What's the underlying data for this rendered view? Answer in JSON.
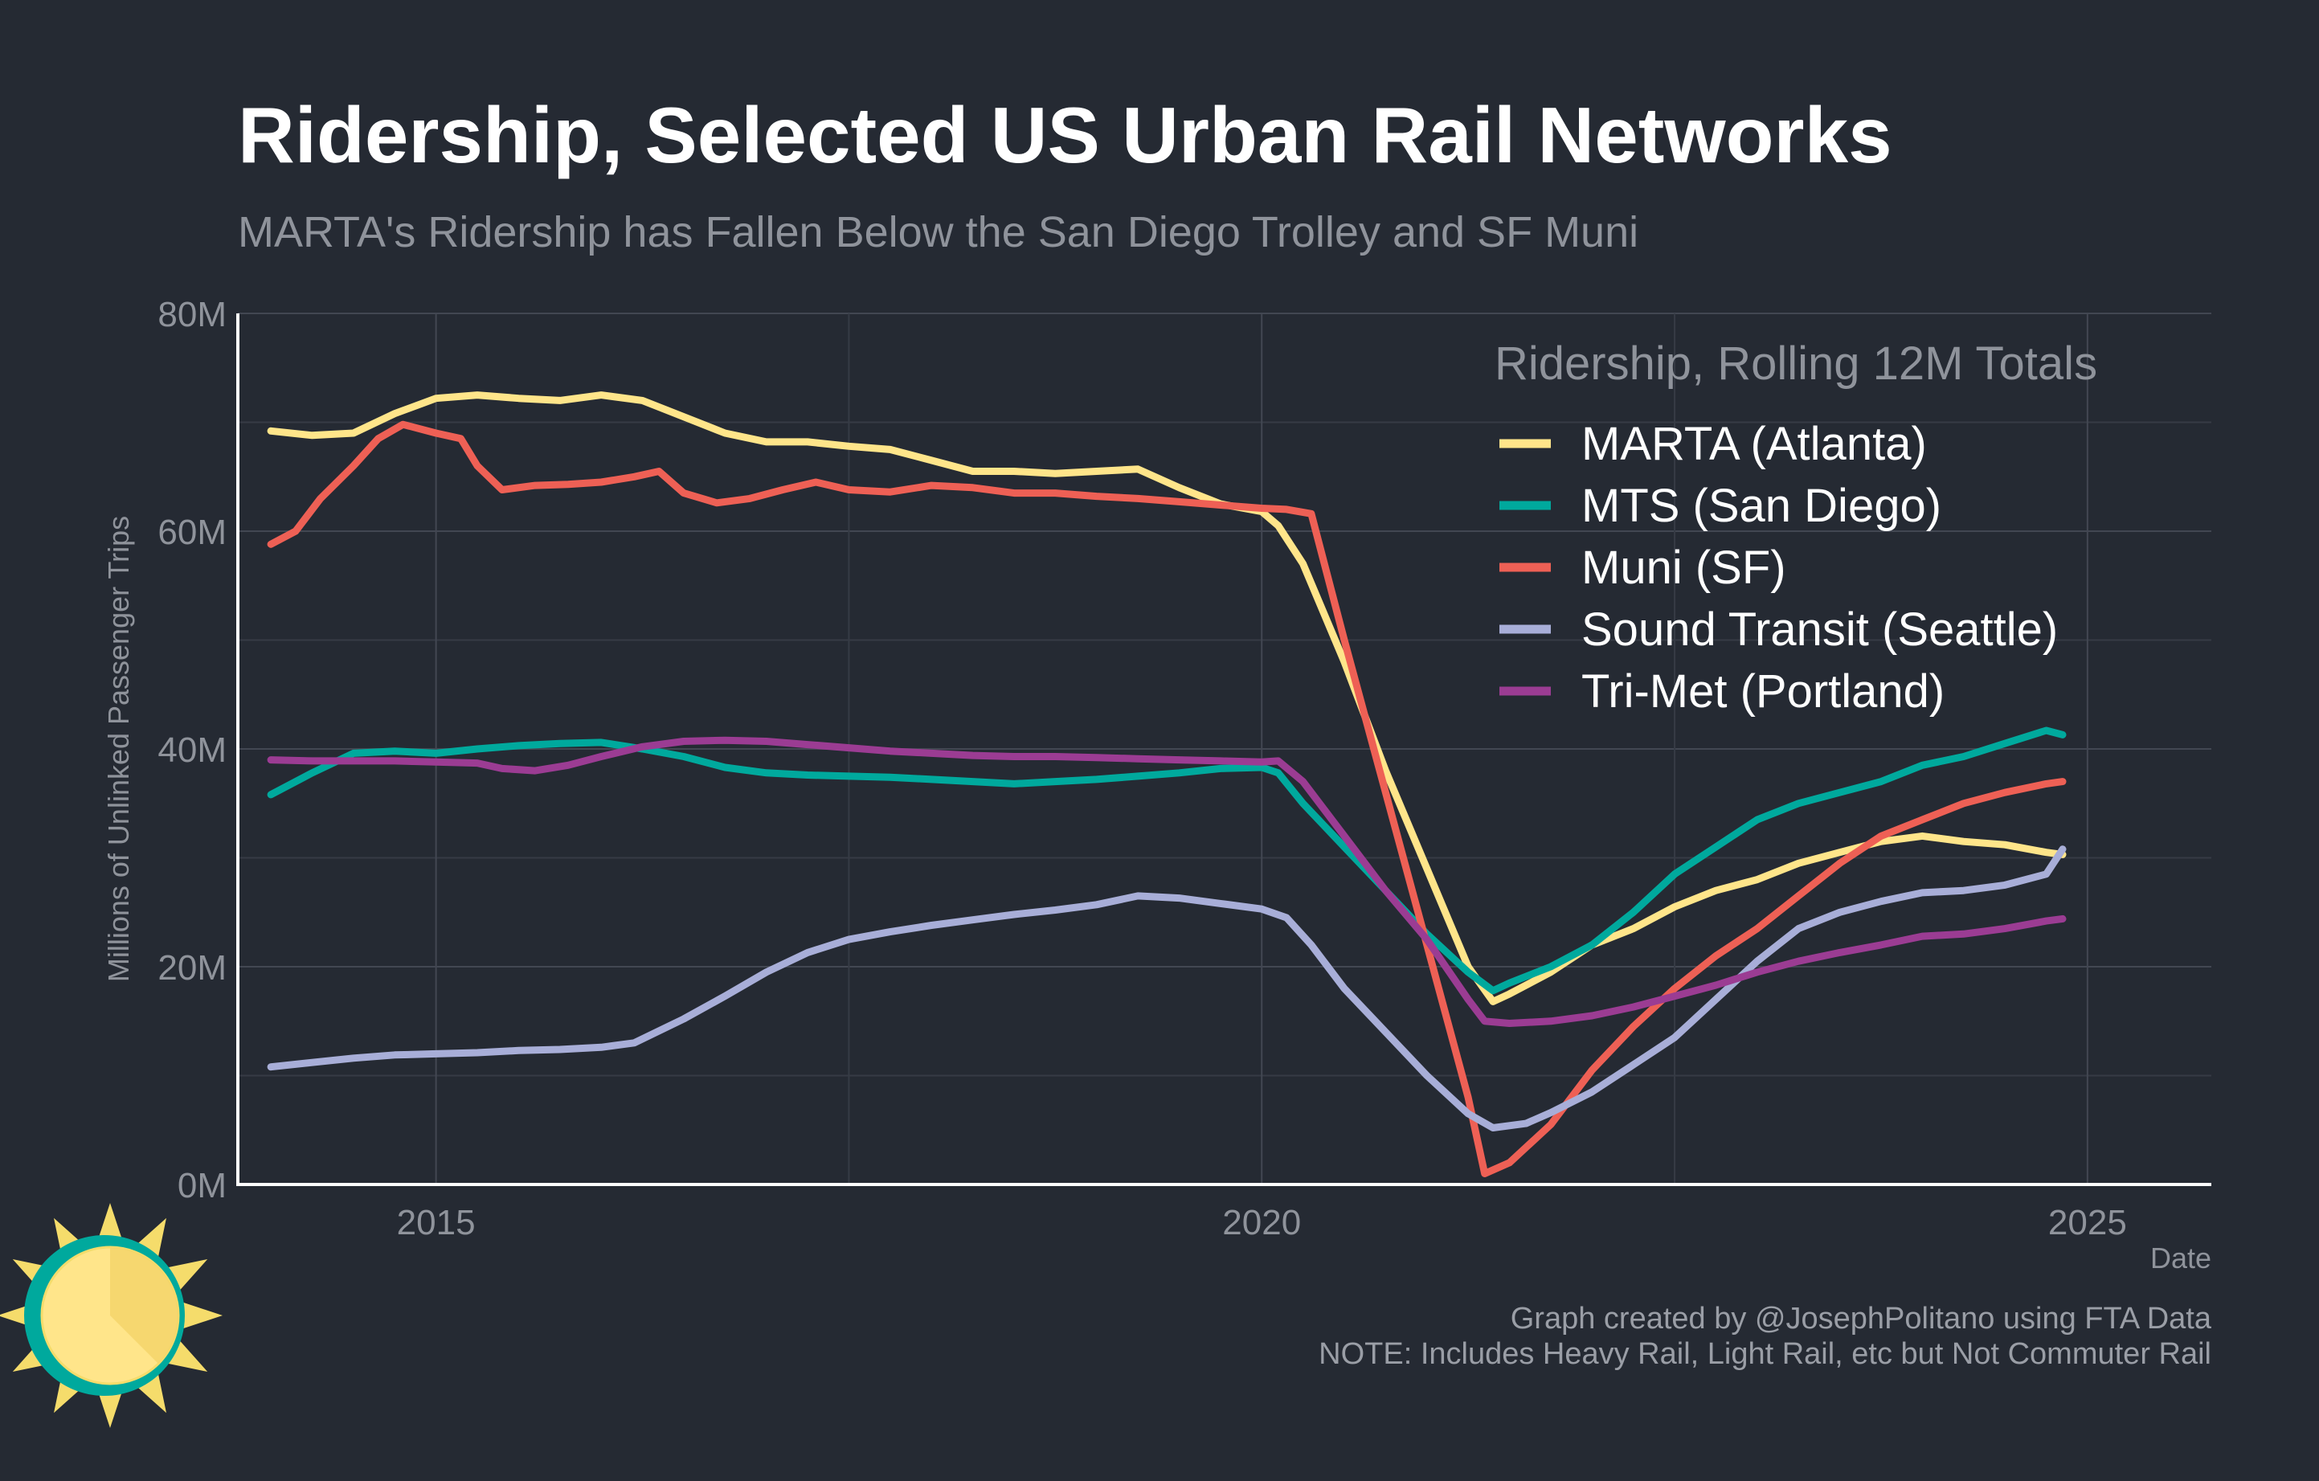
{
  "header": {
    "title": "Ridership, Selected US Urban Rail Networks",
    "subtitle": "MARTA's Ridership has Fallen Below the San Diego Trolley and SF Muni"
  },
  "footer": {
    "credit": "Graph created by @JosephPolitano using FTA Data",
    "note": "NOTE: Includes Heavy Rail, Light Rail, etc but Not Commuter Rail"
  },
  "logo": {
    "name": "sun-logo-icon"
  },
  "chart_data": {
    "type": "line",
    "title": "Ridership, Selected US Urban Rail Networks",
    "subtitle": "MARTA's Ridership has Fallen Below the San Diego Trolley and SF Muni",
    "xlabel": "Date",
    "ylabel": "Millions of Unlinked Passenger Trips",
    "xlim": [
      2013.8,
      2025.75
    ],
    "ylim": [
      0,
      80
    ],
    "x_ticks": [
      2015,
      2020,
      2025
    ],
    "x_tick_labels": [
      "2015",
      "2020",
      "2025"
    ],
    "y_ticks": [
      0,
      20,
      40,
      60,
      80
    ],
    "y_tick_labels": [
      "0M",
      "20M",
      "40M",
      "60M",
      "80M"
    ],
    "grid": true,
    "legend": {
      "title": "Ridership, Rolling 12M Totals",
      "placement": "top-right"
    },
    "series": [
      {
        "name": "MARTA (Atlanta)",
        "color": "#ffe58a",
        "points": [
          [
            2014.0,
            69.2
          ],
          [
            2014.25,
            68.8
          ],
          [
            2014.5,
            69.0
          ],
          [
            2014.75,
            70.8
          ],
          [
            2015.0,
            72.2
          ],
          [
            2015.25,
            72.5
          ],
          [
            2015.5,
            72.2
          ],
          [
            2015.75,
            72.0
          ],
          [
            2016.0,
            72.5
          ],
          [
            2016.25,
            72.0
          ],
          [
            2016.5,
            70.5
          ],
          [
            2016.75,
            69.0
          ],
          [
            2017.0,
            68.2
          ],
          [
            2017.25,
            68.2
          ],
          [
            2017.5,
            67.8
          ],
          [
            2017.75,
            67.5
          ],
          [
            2018.0,
            66.5
          ],
          [
            2018.25,
            65.5
          ],
          [
            2018.5,
            65.5
          ],
          [
            2018.75,
            65.3
          ],
          [
            2019.0,
            65.5
          ],
          [
            2019.25,
            65.7
          ],
          [
            2019.5,
            64.0
          ],
          [
            2019.75,
            62.5
          ],
          [
            2020.0,
            61.8
          ],
          [
            2020.1,
            60.5
          ],
          [
            2020.25,
            57.0
          ],
          [
            2020.5,
            48.0
          ],
          [
            2020.75,
            38.0
          ],
          [
            2021.0,
            29.0
          ],
          [
            2021.25,
            20.0
          ],
          [
            2021.4,
            16.8
          ],
          [
            2021.5,
            17.5
          ],
          [
            2021.75,
            19.5
          ],
          [
            2022.0,
            22.0
          ],
          [
            2022.25,
            23.5
          ],
          [
            2022.5,
            25.5
          ],
          [
            2022.75,
            27.0
          ],
          [
            2023.0,
            28.0
          ],
          [
            2023.25,
            29.5
          ],
          [
            2023.5,
            30.5
          ],
          [
            2023.75,
            31.5
          ],
          [
            2024.0,
            32.0
          ],
          [
            2024.25,
            31.5
          ],
          [
            2024.5,
            31.2
          ],
          [
            2024.75,
            30.5
          ],
          [
            2024.85,
            30.3
          ]
        ]
      },
      {
        "name": "MTS (San Diego)",
        "color": "#00a99d",
        "points": [
          [
            2014.0,
            35.8
          ],
          [
            2014.25,
            37.8
          ],
          [
            2014.5,
            39.6
          ],
          [
            2014.75,
            39.8
          ],
          [
            2015.0,
            39.6
          ],
          [
            2015.25,
            40.0
          ],
          [
            2015.5,
            40.3
          ],
          [
            2015.75,
            40.5
          ],
          [
            2016.0,
            40.6
          ],
          [
            2016.25,
            40.0
          ],
          [
            2016.5,
            39.3
          ],
          [
            2016.75,
            38.3
          ],
          [
            2017.0,
            37.8
          ],
          [
            2017.25,
            37.6
          ],
          [
            2017.5,
            37.5
          ],
          [
            2017.75,
            37.4
          ],
          [
            2018.0,
            37.2
          ],
          [
            2018.25,
            37.0
          ],
          [
            2018.5,
            36.8
          ],
          [
            2018.75,
            37.0
          ],
          [
            2019.0,
            37.2
          ],
          [
            2019.25,
            37.5
          ],
          [
            2019.5,
            37.8
          ],
          [
            2019.75,
            38.2
          ],
          [
            2020.0,
            38.3
          ],
          [
            2020.1,
            37.8
          ],
          [
            2020.25,
            35.0
          ],
          [
            2020.5,
            31.0
          ],
          [
            2020.75,
            27.0
          ],
          [
            2021.0,
            23.0
          ],
          [
            2021.25,
            19.5
          ],
          [
            2021.4,
            17.8
          ],
          [
            2021.5,
            18.5
          ],
          [
            2021.75,
            20.0
          ],
          [
            2022.0,
            22.0
          ],
          [
            2022.25,
            25.0
          ],
          [
            2022.5,
            28.5
          ],
          [
            2022.75,
            31.0
          ],
          [
            2023.0,
            33.5
          ],
          [
            2023.25,
            35.0
          ],
          [
            2023.5,
            36.0
          ],
          [
            2023.75,
            37.0
          ],
          [
            2024.0,
            38.5
          ],
          [
            2024.25,
            39.3
          ],
          [
            2024.5,
            40.5
          ],
          [
            2024.75,
            41.7
          ],
          [
            2024.85,
            41.3
          ]
        ]
      },
      {
        "name": "Muni (SF)",
        "color": "#ee6055",
        "points": [
          [
            2014.0,
            58.8
          ],
          [
            2014.15,
            60.0
          ],
          [
            2014.3,
            63.0
          ],
          [
            2014.5,
            66.0
          ],
          [
            2014.65,
            68.5
          ],
          [
            2014.8,
            69.8
          ],
          [
            2015.0,
            69.0
          ],
          [
            2015.15,
            68.5
          ],
          [
            2015.25,
            66.0
          ],
          [
            2015.4,
            63.8
          ],
          [
            2015.6,
            64.2
          ],
          [
            2015.8,
            64.3
          ],
          [
            2016.0,
            64.5
          ],
          [
            2016.2,
            65.0
          ],
          [
            2016.35,
            65.5
          ],
          [
            2016.5,
            63.5
          ],
          [
            2016.7,
            62.6
          ],
          [
            2016.9,
            63.0
          ],
          [
            2017.1,
            63.8
          ],
          [
            2017.3,
            64.5
          ],
          [
            2017.5,
            63.8
          ],
          [
            2017.75,
            63.6
          ],
          [
            2018.0,
            64.2
          ],
          [
            2018.25,
            64.0
          ],
          [
            2018.5,
            63.5
          ],
          [
            2018.75,
            63.5
          ],
          [
            2019.0,
            63.2
          ],
          [
            2019.25,
            63.0
          ],
          [
            2019.5,
            62.7
          ],
          [
            2019.75,
            62.4
          ],
          [
            2020.0,
            62.1
          ],
          [
            2020.15,
            62.0
          ],
          [
            2020.3,
            61.6
          ],
          [
            2020.5,
            50.0
          ],
          [
            2020.75,
            36.0
          ],
          [
            2021.0,
            22.0
          ],
          [
            2021.25,
            8.0
          ],
          [
            2021.35,
            1.0
          ],
          [
            2021.5,
            2.0
          ],
          [
            2021.75,
            5.5
          ],
          [
            2022.0,
            10.5
          ],
          [
            2022.25,
            14.5
          ],
          [
            2022.5,
            18.0
          ],
          [
            2022.75,
            21.0
          ],
          [
            2023.0,
            23.5
          ],
          [
            2023.25,
            26.5
          ],
          [
            2023.5,
            29.5
          ],
          [
            2023.75,
            32.0
          ],
          [
            2024.0,
            33.5
          ],
          [
            2024.25,
            35.0
          ],
          [
            2024.5,
            36.0
          ],
          [
            2024.75,
            36.8
          ],
          [
            2024.85,
            37.0
          ]
        ]
      },
      {
        "name": "Sound Transit (Seattle)",
        "color": "#a8aed8",
        "points": [
          [
            2014.0,
            10.8
          ],
          [
            2014.25,
            11.2
          ],
          [
            2014.5,
            11.6
          ],
          [
            2014.75,
            11.9
          ],
          [
            2015.0,
            12.0
          ],
          [
            2015.25,
            12.1
          ],
          [
            2015.5,
            12.3
          ],
          [
            2015.75,
            12.4
          ],
          [
            2016.0,
            12.6
          ],
          [
            2016.2,
            13.0
          ],
          [
            2016.5,
            15.2
          ],
          [
            2016.75,
            17.3
          ],
          [
            2017.0,
            19.5
          ],
          [
            2017.25,
            21.3
          ],
          [
            2017.5,
            22.5
          ],
          [
            2017.75,
            23.2
          ],
          [
            2018.0,
            23.8
          ],
          [
            2018.25,
            24.3
          ],
          [
            2018.5,
            24.8
          ],
          [
            2018.75,
            25.2
          ],
          [
            2019.0,
            25.7
          ],
          [
            2019.25,
            26.5
          ],
          [
            2019.5,
            26.3
          ],
          [
            2019.75,
            25.8
          ],
          [
            2020.0,
            25.3
          ],
          [
            2020.15,
            24.5
          ],
          [
            2020.3,
            22.0
          ],
          [
            2020.5,
            18.0
          ],
          [
            2020.75,
            14.0
          ],
          [
            2021.0,
            10.0
          ],
          [
            2021.25,
            6.5
          ],
          [
            2021.4,
            5.2
          ],
          [
            2021.6,
            5.6
          ],
          [
            2021.75,
            6.6
          ],
          [
            2022.0,
            8.5
          ],
          [
            2022.25,
            11.0
          ],
          [
            2022.5,
            13.5
          ],
          [
            2022.75,
            17.0
          ],
          [
            2023.0,
            20.5
          ],
          [
            2023.25,
            23.5
          ],
          [
            2023.5,
            25.0
          ],
          [
            2023.75,
            26.0
          ],
          [
            2024.0,
            26.8
          ],
          [
            2024.25,
            27.0
          ],
          [
            2024.5,
            27.5
          ],
          [
            2024.75,
            28.5
          ],
          [
            2024.85,
            30.8
          ]
        ]
      },
      {
        "name": "Tri-Met (Portland)",
        "color": "#9b3c93",
        "points": [
          [
            2014.0,
            39.0
          ],
          [
            2014.25,
            38.9
          ],
          [
            2014.5,
            38.9
          ],
          [
            2014.75,
            38.9
          ],
          [
            2015.0,
            38.8
          ],
          [
            2015.25,
            38.7
          ],
          [
            2015.4,
            38.2
          ],
          [
            2015.6,
            38.0
          ],
          [
            2015.8,
            38.5
          ],
          [
            2016.0,
            39.3
          ],
          [
            2016.25,
            40.2
          ],
          [
            2016.5,
            40.7
          ],
          [
            2016.75,
            40.8
          ],
          [
            2017.0,
            40.7
          ],
          [
            2017.25,
            40.4
          ],
          [
            2017.5,
            40.1
          ],
          [
            2017.75,
            39.8
          ],
          [
            2018.0,
            39.6
          ],
          [
            2018.25,
            39.4
          ],
          [
            2018.5,
            39.3
          ],
          [
            2018.75,
            39.3
          ],
          [
            2019.0,
            39.2
          ],
          [
            2019.25,
            39.1
          ],
          [
            2019.5,
            39.0
          ],
          [
            2019.75,
            38.9
          ],
          [
            2020.0,
            38.8
          ],
          [
            2020.1,
            38.9
          ],
          [
            2020.25,
            37.0
          ],
          [
            2020.5,
            32.0
          ],
          [
            2020.75,
            27.0
          ],
          [
            2021.0,
            22.5
          ],
          [
            2021.25,
            17.0
          ],
          [
            2021.35,
            15.0
          ],
          [
            2021.5,
            14.8
          ],
          [
            2021.75,
            15.0
          ],
          [
            2022.0,
            15.5
          ],
          [
            2022.25,
            16.3
          ],
          [
            2022.5,
            17.3
          ],
          [
            2022.75,
            18.3
          ],
          [
            2023.0,
            19.5
          ],
          [
            2023.25,
            20.5
          ],
          [
            2023.5,
            21.3
          ],
          [
            2023.75,
            22.0
          ],
          [
            2024.0,
            22.8
          ],
          [
            2024.25,
            23.0
          ],
          [
            2024.5,
            23.5
          ],
          [
            2024.75,
            24.2
          ],
          [
            2024.85,
            24.4
          ]
        ]
      }
    ]
  }
}
